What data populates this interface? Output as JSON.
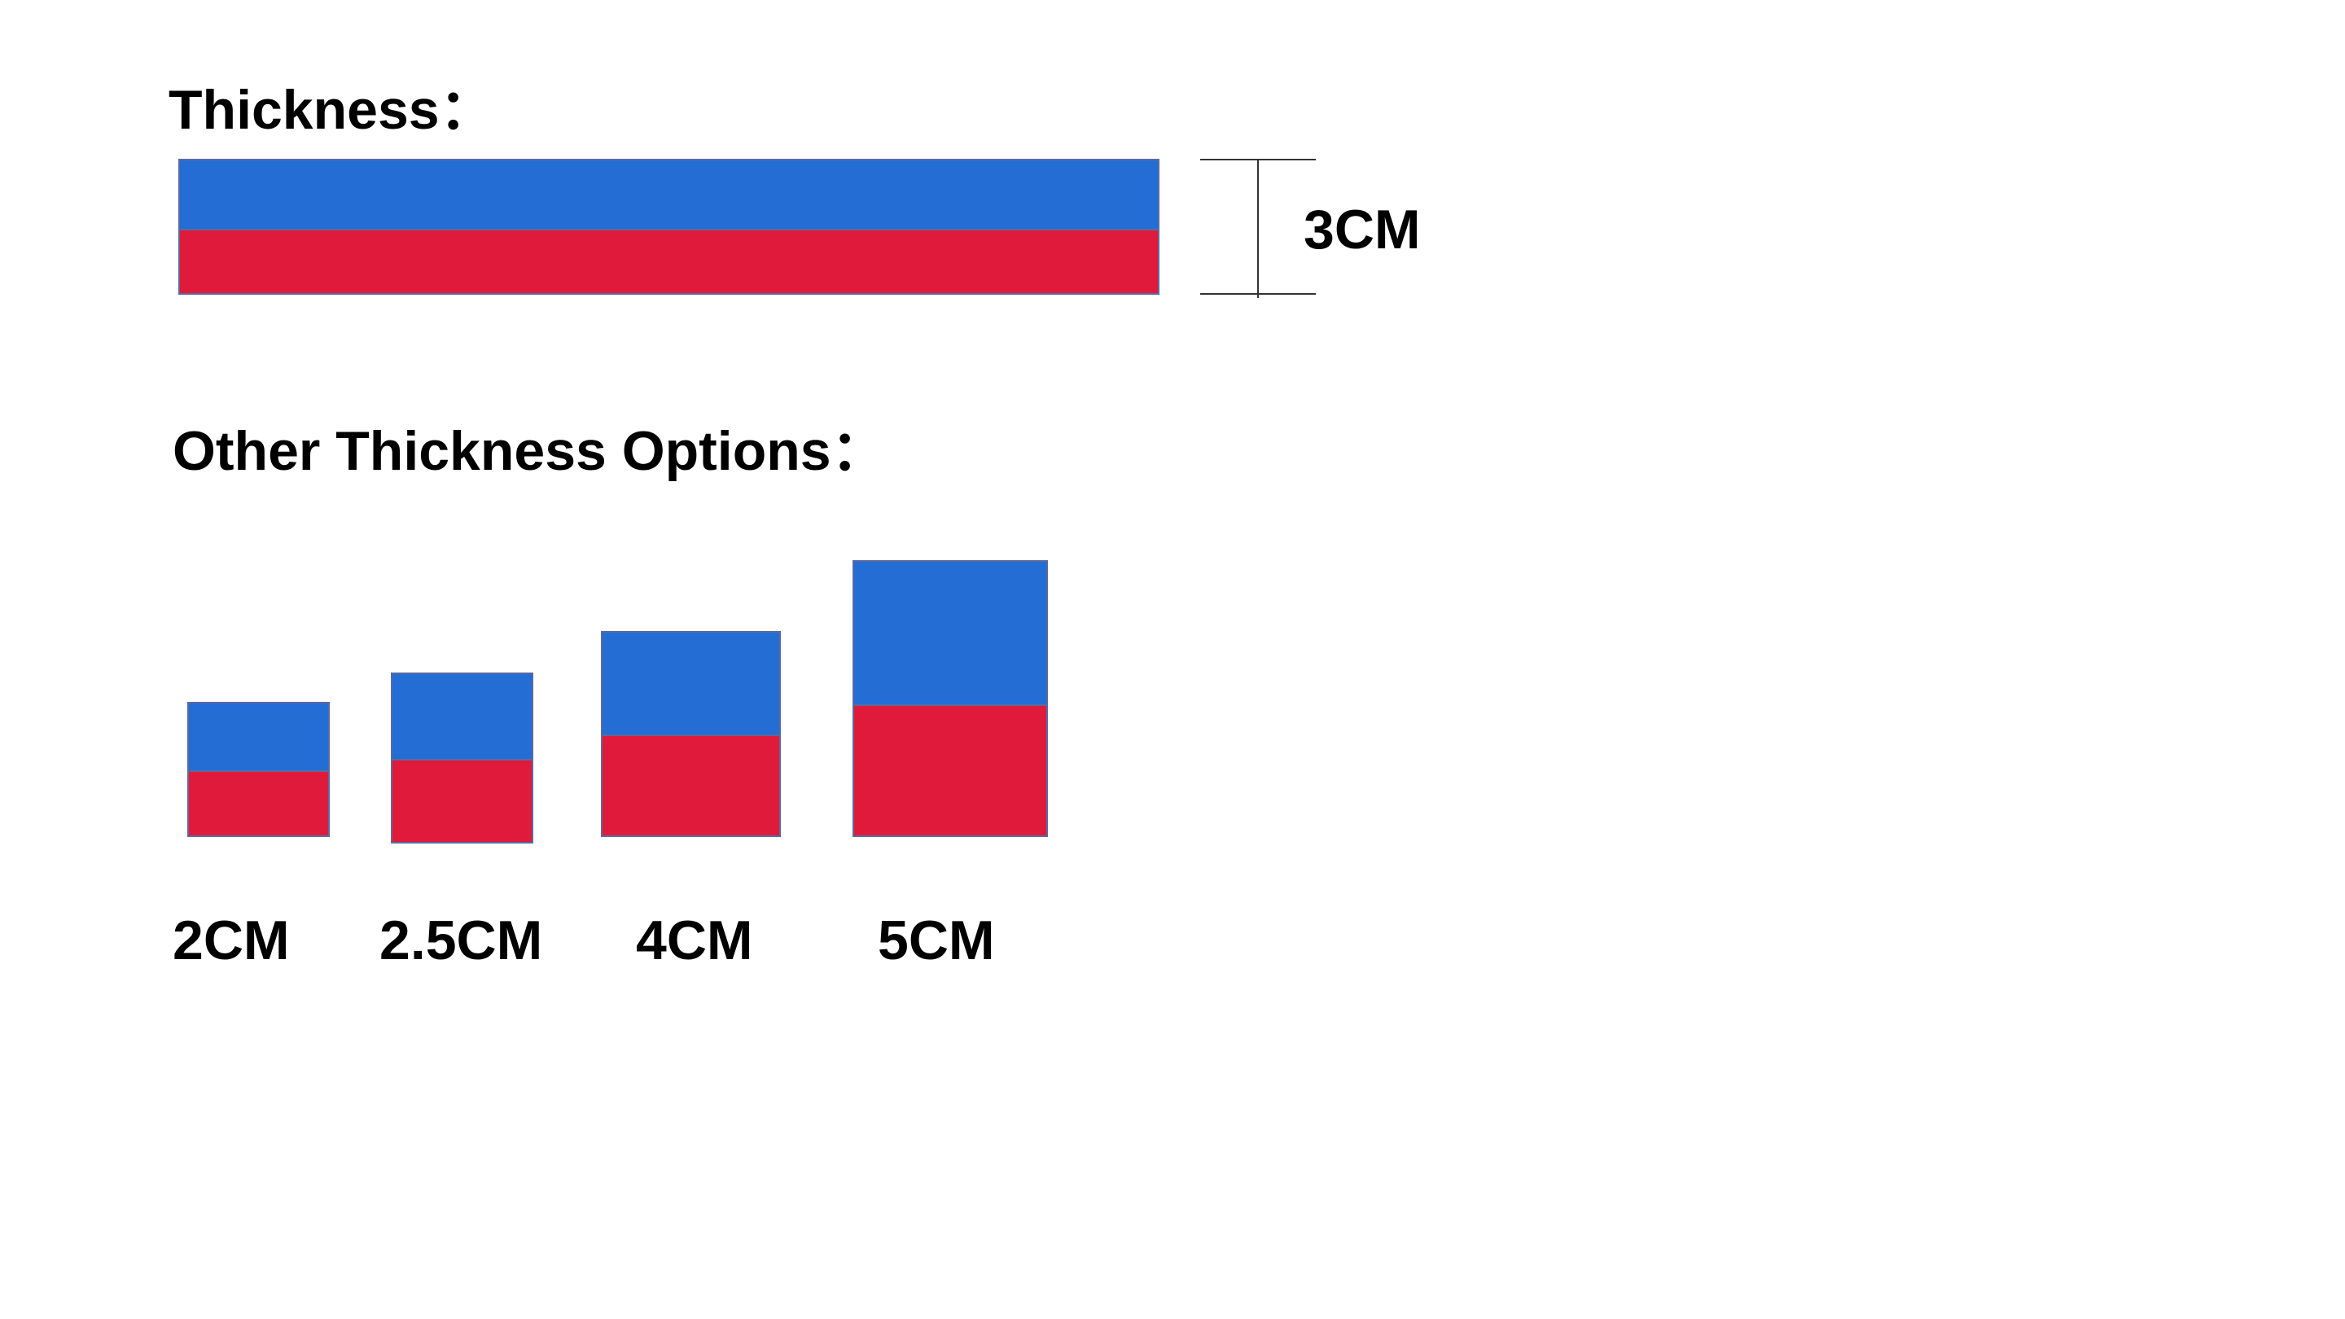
{
  "header": {
    "title": "Thickness："
  },
  "current": {
    "label": "3CM"
  },
  "options": {
    "title": "Other Thickness Options：",
    "items": [
      {
        "label": "2CM"
      },
      {
        "label": "2.5CM"
      },
      {
        "label": "4CM"
      },
      {
        "label": "5CM"
      }
    ]
  }
}
